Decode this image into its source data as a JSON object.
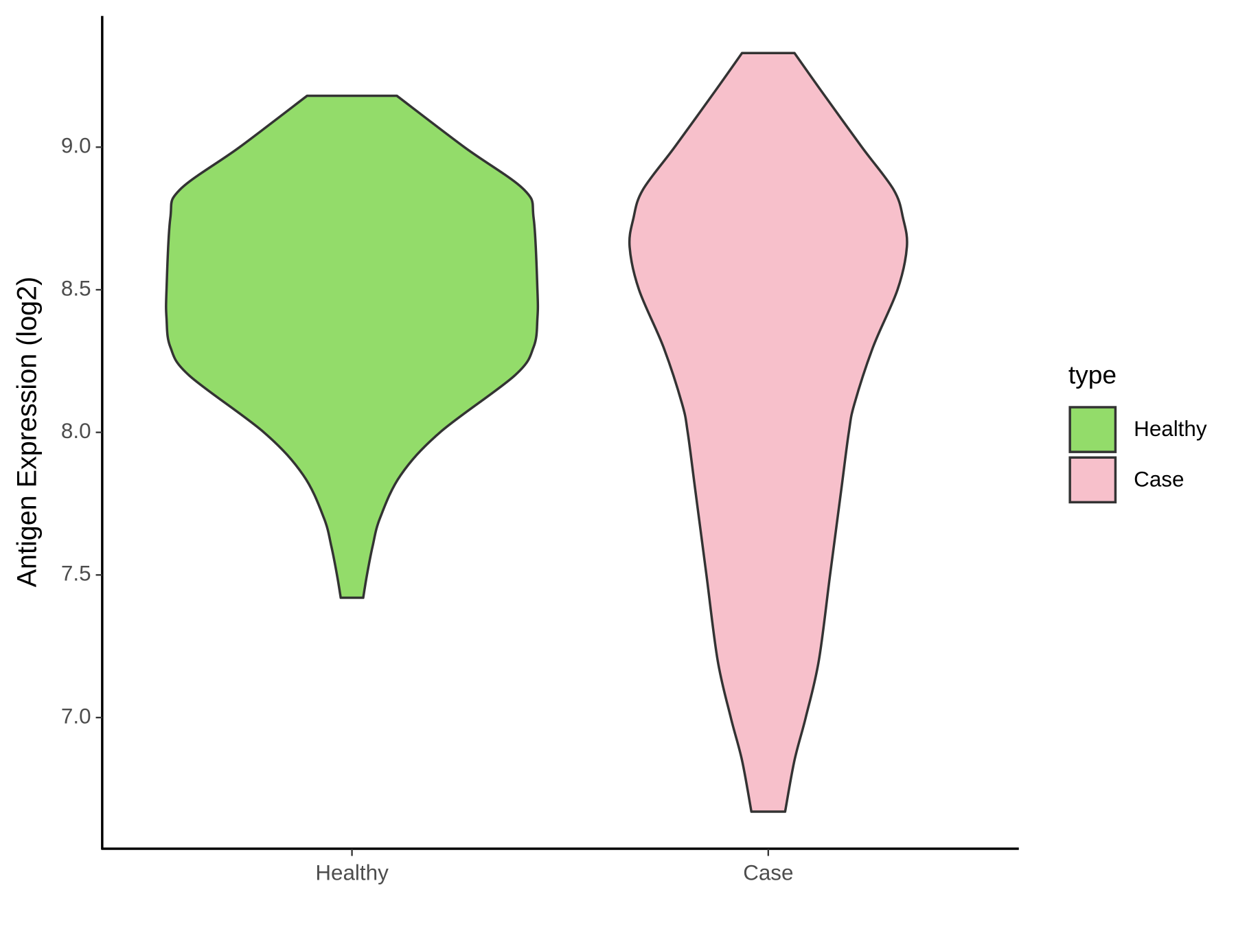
{
  "chart_data": {
    "type": "violin",
    "y_label": "Antigen Expression (log2)",
    "legend_title": "type",
    "categories": [
      "Healthy",
      "Case"
    ],
    "series": [
      {
        "name": "Healthy",
        "color": "#93dc6a",
        "y": [
          9.18,
          9.0,
          8.85,
          8.75,
          8.5,
          8.4,
          8.3,
          8.2,
          8.0,
          7.85,
          7.7,
          7.6,
          7.5,
          7.42
        ],
        "density": [
          0.24,
          0.6,
          0.92,
          0.97,
          0.99,
          0.99,
          0.97,
          0.87,
          0.47,
          0.26,
          0.15,
          0.11,
          0.08,
          0.06
        ]
      },
      {
        "name": "Case",
        "color": "#f7c0cb",
        "y": [
          9.33,
          9.2,
          9.0,
          8.85,
          8.75,
          8.65,
          8.5,
          8.3,
          8.1,
          8.0,
          7.8,
          7.5,
          7.2,
          7.0,
          6.85,
          6.67
        ],
        "density": [
          0.14,
          0.28,
          0.5,
          0.67,
          0.72,
          0.74,
          0.69,
          0.56,
          0.46,
          0.43,
          0.39,
          0.33,
          0.27,
          0.2,
          0.14,
          0.09
        ]
      }
    ],
    "ylim": [
      6.54,
      9.46
    ],
    "yticks": [
      {
        "value": 7.0,
        "label": "7.0"
      },
      {
        "value": 7.5,
        "label": "7.5"
      },
      {
        "value": 8.0,
        "label": "8.0"
      },
      {
        "value": 8.5,
        "label": "8.5"
      },
      {
        "value": 9.0,
        "label": "9.0"
      }
    ],
    "legend_position": "right"
  }
}
